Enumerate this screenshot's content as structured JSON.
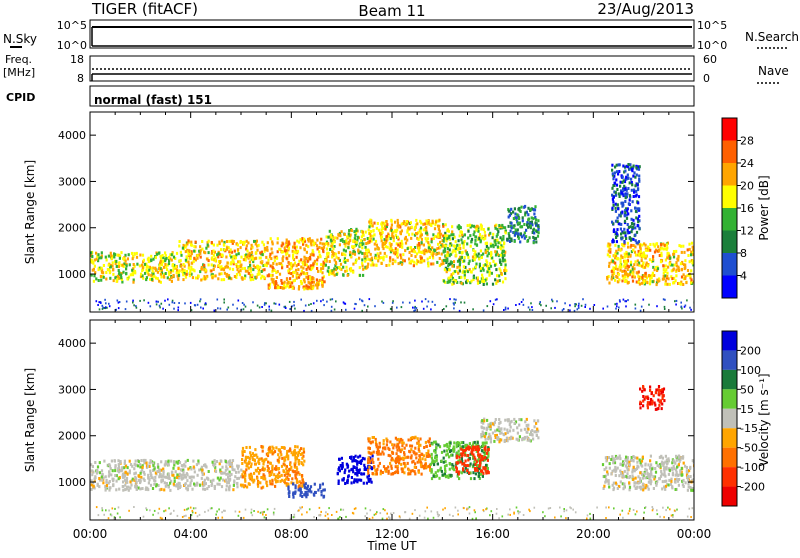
{
  "header": {
    "station": "TIGER (fitACF)",
    "beam": "Beam 11",
    "date": "23/Aug/2013"
  },
  "top_panels": {
    "nsky": {
      "left_label": "N.Sky",
      "right_label": "N.Search",
      "left_ticks": [
        "10^5",
        "10^0"
      ],
      "right_ticks": [
        "10^5",
        "10^0"
      ]
    },
    "freq": {
      "left_label_1": "Freq.",
      "left_label_2": "[MHz]",
      "right_label": "Nave",
      "left_ticks": [
        "18",
        "8"
      ],
      "right_ticks": [
        "60",
        "0"
      ]
    },
    "cpid": {
      "label": "CPID",
      "value": "normal (fast) 151"
    }
  },
  "axes": {
    "ylabel": "Slant Range [km]",
    "xlabel": "Time UT",
    "y_ticks": [
      "1000",
      "2000",
      "3000",
      "4000"
    ],
    "x_ticks": [
      "00:00",
      "04:00",
      "08:00",
      "12:00",
      "16:00",
      "20:00",
      "00:00"
    ]
  },
  "colorbars": {
    "power": {
      "label": "Power [dB]",
      "ticks": [
        "4",
        "8",
        "12",
        "16",
        "20",
        "24",
        "28"
      ],
      "colors": [
        "#0000ff",
        "#1f4fd1",
        "#1b7f3b",
        "#33b233",
        "#ffff00",
        "#ffa500",
        "#ff6000",
        "#ff0000"
      ]
    },
    "velocity": {
      "label": "Velocity [m s⁻¹]",
      "ticks": [
        "200",
        "100",
        "50",
        "15",
        "-15",
        "-50",
        "-100",
        "-200"
      ],
      "colors": [
        "#0000dd",
        "#3050c0",
        "#1a7a3a",
        "#66cc33",
        "#c0c0b8",
        "#ffa500",
        "#ff7000",
        "#ff3000",
        "#ee0000"
      ]
    }
  },
  "chart_data": [
    {
      "type": "heatmap",
      "quantity": "Power",
      "units": "dB",
      "x_range_hours": [
        0,
        24
      ],
      "y_range_km": [
        180,
        4500
      ],
      "color_range": [
        0,
        30
      ],
      "echo_bands": [
        {
          "t_start": 0.0,
          "t_end": 3.5,
          "range_low_km": 850,
          "range_high_km": 1500,
          "power_db": 18
        },
        {
          "t_start": 3.5,
          "t_end": 7.0,
          "range_low_km": 900,
          "range_high_km": 1750,
          "power_db": 20
        },
        {
          "t_start": 7.0,
          "t_end": 9.3,
          "range_low_km": 700,
          "range_high_km": 1800,
          "power_db": 22
        },
        {
          "t_start": 9.3,
          "t_end": 11.0,
          "range_low_km": 1000,
          "range_high_km": 2000,
          "power_db": 18
        },
        {
          "t_start": 11.0,
          "t_end": 14.0,
          "range_low_km": 1200,
          "range_high_km": 2200,
          "power_db": 20
        },
        {
          "t_start": 14.0,
          "t_end": 16.5,
          "range_low_km": 800,
          "range_high_km": 2100,
          "power_db": 16
        },
        {
          "t_start": 16.5,
          "t_end": 17.8,
          "range_low_km": 1700,
          "range_high_km": 2500,
          "power_db": 10
        },
        {
          "t_start": 20.5,
          "t_end": 24.0,
          "range_low_km": 800,
          "range_high_km": 1700,
          "power_db": 20
        },
        {
          "t_start": 20.7,
          "t_end": 21.8,
          "range_low_km": 1700,
          "range_high_km": 3400,
          "power_db": 6
        }
      ]
    },
    {
      "type": "heatmap",
      "quantity": "Velocity",
      "units": "m s-1",
      "x_range_hours": [
        0,
        24
      ],
      "y_range_km": [
        180,
        4500
      ],
      "color_range": [
        -200,
        200
      ],
      "echo_bands": [
        {
          "t_start": 0.0,
          "t_end": 6.0,
          "range_low_km": 850,
          "range_high_km": 1500,
          "velocity": 0
        },
        {
          "t_start": 6.0,
          "t_end": 8.5,
          "range_low_km": 900,
          "range_high_km": 1800,
          "velocity": -40
        },
        {
          "t_start": 7.8,
          "t_end": 9.3,
          "range_low_km": 700,
          "range_high_km": 1000,
          "velocity": 180
        },
        {
          "t_start": 9.8,
          "t_end": 11.2,
          "range_low_km": 1000,
          "range_high_km": 1600,
          "velocity": 220
        },
        {
          "t_start": 11.0,
          "t_end": 13.5,
          "range_low_km": 1200,
          "range_high_km": 2000,
          "velocity": -60
        },
        {
          "t_start": 13.5,
          "t_end": 15.8,
          "range_low_km": 1100,
          "range_high_km": 1900,
          "velocity": 40
        },
        {
          "t_start": 14.5,
          "t_end": 15.8,
          "range_low_km": 1200,
          "range_high_km": 1800,
          "velocity": -180
        },
        {
          "t_start": 15.5,
          "t_end": 17.8,
          "range_low_km": 1900,
          "range_high_km": 2400,
          "velocity": 0
        },
        {
          "t_start": 20.3,
          "t_end": 24.0,
          "range_low_km": 850,
          "range_high_km": 1600,
          "velocity": 0
        },
        {
          "t_start": 21.8,
          "t_end": 22.8,
          "range_low_km": 2600,
          "range_high_km": 3100,
          "velocity": -200
        }
      ]
    }
  ]
}
